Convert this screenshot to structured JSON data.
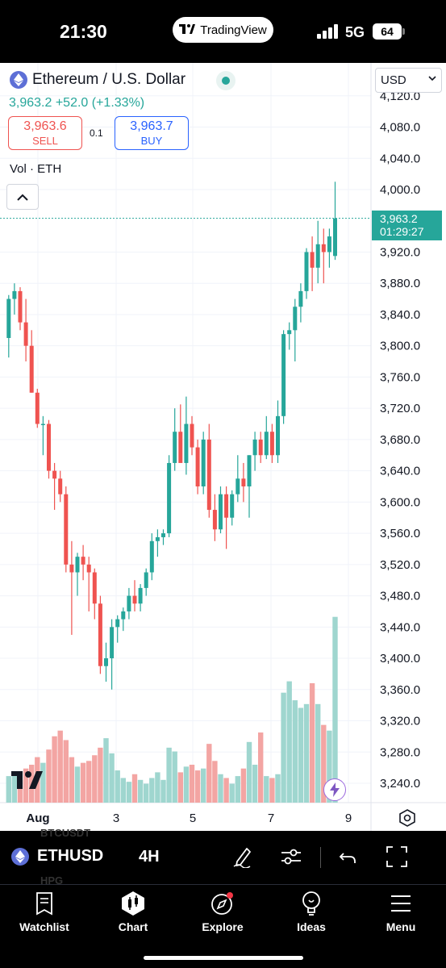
{
  "status_bar": {
    "time": "21:30",
    "app_pill": "TradingView",
    "network": "5G",
    "battery": "64"
  },
  "header": {
    "title": "Ethereum / U.S. Dollar",
    "price_change": "3,963.2 +52.0 (+1.33%)",
    "sell": {
      "price": "3,963.6",
      "label": "SELL"
    },
    "buy": {
      "price": "3,963.7",
      "label": "BUY"
    },
    "spread": "0.1",
    "volume_label": "Vol · ETH",
    "currency": "USD"
  },
  "last_price_tag": {
    "price": "3,963.2",
    "countdown": "01:29:27"
  },
  "chart_data": {
    "type": "candlestick",
    "symbol": "ETHUSD",
    "interval": "4H",
    "y_axis_ticks": [
      "4,120.0",
      "4,080.0",
      "4,040.0",
      "4,000.0",
      "3,920.0",
      "3,880.0",
      "3,840.0",
      "3,800.0",
      "3,760.0",
      "3,720.0",
      "3,680.0",
      "3,640.0",
      "3,600.0",
      "3,560.0",
      "3,520.0",
      "3,480.0",
      "3,440.0",
      "3,400.0",
      "3,360.0",
      "3,320.0",
      "3,280.0",
      "3,240.0"
    ],
    "x_axis_ticks": [
      "Aug",
      "3",
      "5",
      "7",
      "9"
    ],
    "ylim": [
      3220,
      4130
    ],
    "last_price": 3963.2,
    "candles": [
      [
        3810,
        3865,
        3785,
        3860,
        14
      ],
      [
        3860,
        3880,
        3840,
        3870,
        16
      ],
      [
        3870,
        3875,
        3820,
        3830,
        12
      ],
      [
        3830,
        3860,
        3780,
        3800,
        18
      ],
      [
        3800,
        3820,
        3740,
        3740,
        20
      ],
      [
        3740,
        3745,
        3695,
        3700,
        24
      ],
      [
        3700,
        3710,
        3660,
        3700,
        21
      ],
      [
        3700,
        3705,
        3630,
        3640,
        28
      ],
      [
        3640,
        3650,
        3590,
        3630,
        35
      ],
      [
        3630,
        3640,
        3600,
        3610,
        38
      ],
      [
        3610,
        3620,
        3510,
        3520,
        33
      ],
      [
        3520,
        3550,
        3430,
        3510,
        24
      ],
      [
        3510,
        3535,
        3480,
        3530,
        19
      ],
      [
        3530,
        3545,
        3500,
        3520,
        21
      ],
      [
        3520,
        3530,
        3460,
        3510,
        22
      ],
      [
        3510,
        3515,
        3450,
        3470,
        25
      ],
      [
        3470,
        3480,
        3380,
        3390,
        29
      ],
      [
        3390,
        3420,
        3370,
        3400,
        34
      ],
      [
        3400,
        3450,
        3360,
        3440,
        26
      ],
      [
        3440,
        3455,
        3420,
        3450,
        17
      ],
      [
        3450,
        3465,
        3435,
        3460,
        13
      ],
      [
        3460,
        3490,
        3450,
        3480,
        11
      ],
      [
        3480,
        3500,
        3460,
        3470,
        15
      ],
      [
        3470,
        3495,
        3460,
        3490,
        12
      ],
      [
        3490,
        3515,
        3480,
        3510,
        10
      ],
      [
        3510,
        3560,
        3500,
        3550,
        13
      ],
      [
        3550,
        3565,
        3530,
        3555,
        16
      ],
      [
        3555,
        3565,
        3545,
        3560,
        12
      ],
      [
        3560,
        3660,
        3555,
        3650,
        29
      ],
      [
        3650,
        3720,
        3640,
        3690,
        27
      ],
      [
        3690,
        3725,
        3655,
        3650,
        16
      ],
      [
        3650,
        3735,
        3635,
        3700,
        19
      ],
      [
        3700,
        3710,
        3660,
        3670,
        20
      ],
      [
        3670,
        3680,
        3610,
        3620,
        17
      ],
      [
        3620,
        3690,
        3610,
        3680,
        18
      ],
      [
        3680,
        3700,
        3580,
        3590,
        31
      ],
      [
        3590,
        3610,
        3550,
        3565,
        22
      ],
      [
        3565,
        3620,
        3560,
        3610,
        15
      ],
      [
        3610,
        3620,
        3540,
        3580,
        13
      ],
      [
        3580,
        3615,
        3570,
        3610,
        10
      ],
      [
        3610,
        3660,
        3600,
        3630,
        14
      ],
      [
        3630,
        3650,
        3600,
        3620,
        18
      ],
      [
        3620,
        3660,
        3580,
        3660,
        32
      ],
      [
        3660,
        3690,
        3640,
        3680,
        20
      ],
      [
        3680,
        3690,
        3650,
        3660,
        37
      ],
      [
        3660,
        3710,
        3655,
        3690,
        14
      ],
      [
        3690,
        3700,
        3650,
        3660,
        13
      ],
      [
        3660,
        3730,
        3650,
        3710,
        15
      ],
      [
        3710,
        3820,
        3700,
        3815,
        58
      ],
      [
        3815,
        3830,
        3795,
        3820,
        64
      ],
      [
        3820,
        3860,
        3780,
        3850,
        54
      ],
      [
        3850,
        3880,
        3830,
        3870,
        50
      ],
      [
        3870,
        3925,
        3860,
        3920,
        52
      ],
      [
        3920,
        3940,
        3870,
        3900,
        63
      ],
      [
        3900,
        3960,
        3880,
        3930,
        52
      ],
      [
        3930,
        3950,
        3880,
        3920,
        41
      ],
      [
        3920,
        3950,
        3900,
        3940,
        38
      ],
      [
        3915,
        4010,
        3910,
        3963,
        98
      ]
    ],
    "volume_note": "volume bars share candle color"
  },
  "toolbar": {
    "symbol": "ETHUSD",
    "interval": "4H",
    "ghost_top": "BTCUSDT",
    "ghost_bottom": "HPG"
  },
  "bottom_nav": {
    "items": [
      {
        "label": "Watchlist",
        "icon": "watchlist-icon"
      },
      {
        "label": "Chart",
        "icon": "chart-icon"
      },
      {
        "label": "Explore",
        "icon": "compass-icon"
      },
      {
        "label": "Ideas",
        "icon": "lightbulb-icon"
      },
      {
        "label": "Menu",
        "icon": "hamburger-icon"
      }
    ]
  },
  "colors": {
    "up": "#26a69a",
    "down": "#ef5350",
    "up_volume": "#9fd6cf",
    "down_volume": "#f3a5a3",
    "accent_blue": "#2962ff"
  }
}
